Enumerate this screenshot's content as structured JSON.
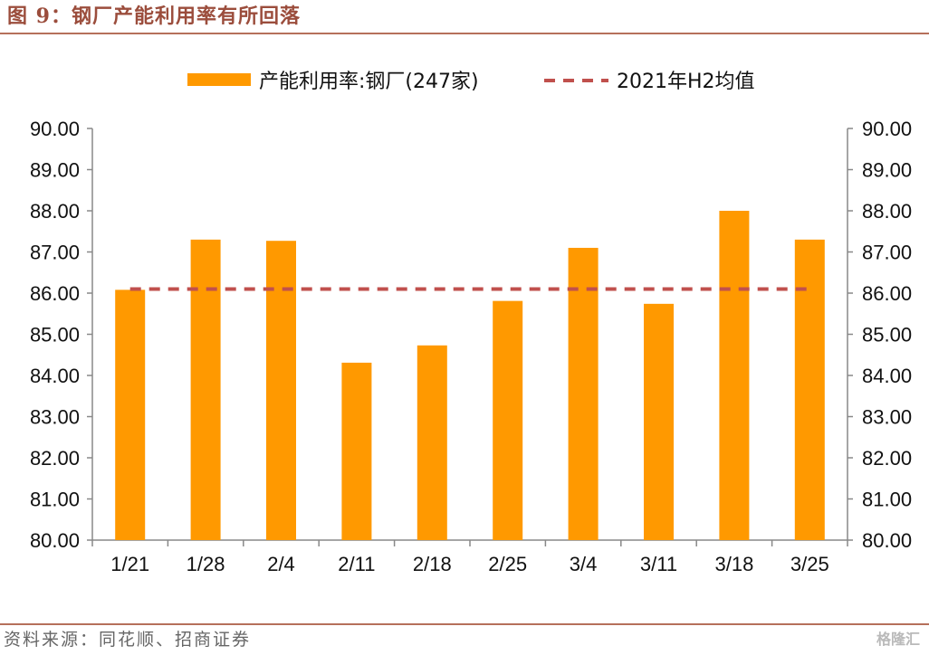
{
  "figure": {
    "title": "图 9：钢厂产能利用率有所回落",
    "source": "资料来源：同花顺、招商证券",
    "watermark": "格隆汇"
  },
  "chart_data": {
    "type": "bar",
    "categories": [
      "1/21",
      "1/28",
      "2/4",
      "2/11",
      "2/18",
      "2/25",
      "3/4",
      "3/11",
      "3/18",
      "3/25"
    ],
    "series": [
      {
        "name": "产能利用率:钢厂(247家)",
        "type": "bar",
        "color": "#ff9900",
        "values": [
          86.08,
          87.3,
          87.27,
          84.31,
          84.73,
          85.81,
          87.1,
          85.74,
          88.0,
          87.3
        ]
      },
      {
        "name": "2021年H2均值",
        "type": "line",
        "style": "dashed",
        "color": "#c0504d",
        "values": [
          86.1,
          86.1,
          86.1,
          86.1,
          86.1,
          86.1,
          86.1,
          86.1,
          86.1,
          86.1
        ]
      }
    ],
    "ylim": [
      80,
      90
    ],
    "yticks": [
      "80.00",
      "81.00",
      "82.00",
      "83.00",
      "84.00",
      "85.00",
      "86.00",
      "87.00",
      "88.00",
      "89.00",
      "90.00"
    ],
    "secondary_axis": {
      "ylim": [
        80,
        90
      ],
      "yticks": [
        "80.00",
        "81.00",
        "82.00",
        "83.00",
        "84.00",
        "85.00",
        "86.00",
        "87.00",
        "88.00",
        "89.00",
        "90.00"
      ]
    },
    "legend": "top-center",
    "grid": false
  }
}
